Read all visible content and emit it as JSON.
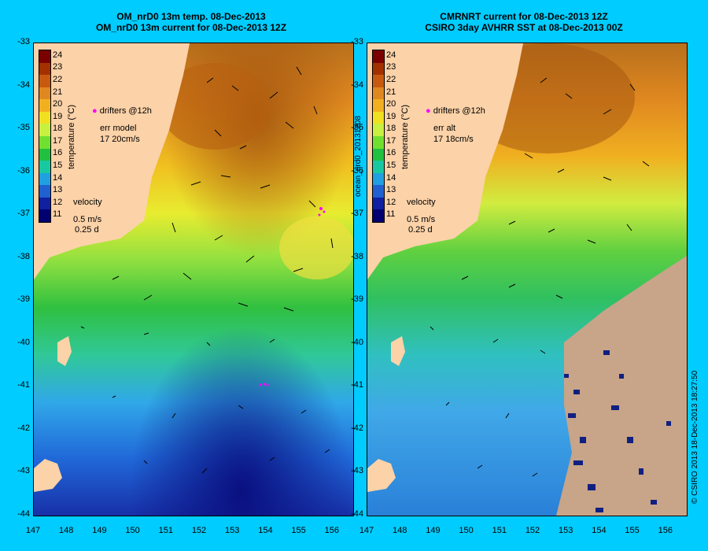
{
  "left_panel": {
    "title_line1": "OM_nrD0 13m temp. 08-Dec-2013",
    "title_line2": "OM_nrD0 13m current for 08-Dec-2013 12Z",
    "colorbar_label": "temperature (°C)",
    "drifters_label": "drifters @12h",
    "err_label": "err model",
    "err_value": "17 20cm/s",
    "velocity_label": "velocity",
    "velocity_scale": "0.5 m/s",
    "velocity_time": "0.25 d"
  },
  "right_panel": {
    "title_line1": "CMRNRT current for 08-Dec-2013 12Z",
    "title_line2": "CSIRO 3day AVHRR SST at 08-Dec-2013 00Z",
    "colorbar_label": "temperature (°C)",
    "drifters_label": "drifters @12h",
    "err_label": "err alt",
    "err_value": "17 18cm/s",
    "velocity_label": "velocity",
    "velocity_scale": "0.5 m/s",
    "velocity_time": "0.25 d",
    "side_id": "ocean_nrd0_20131208"
  },
  "footer_credit": "© CSIRO 2013   18-Dec-2013 18:27:50",
  "axes": {
    "lat_ticks": [
      "-33",
      "-34",
      "-35",
      "-36",
      "-37",
      "-38",
      "-39",
      "-40",
      "-41",
      "-42",
      "-43",
      "-44"
    ],
    "lon_ticks": [
      "147",
      "148",
      "149",
      "150",
      "151",
      "152",
      "153",
      "154",
      "155",
      "156"
    ]
  },
  "colorbar_ticks": [
    "24",
    "23",
    "22",
    "21",
    "20",
    "19",
    "18",
    "17",
    "16",
    "15",
    "14",
    "13",
    "12",
    "11"
  ],
  "colors": {
    "background": "#00ccff",
    "land": "#fcd2a8",
    "cloud": "#c8a488",
    "drifter": "#ff00ff"
  },
  "colorbar_colors": [
    "#7a0000",
    "#a33000",
    "#c85a10",
    "#e08820",
    "#f2b020",
    "#f0e020",
    "#c8f040",
    "#70e030",
    "#20c040",
    "#18c8a0",
    "#20a0e0",
    "#2060d0",
    "#1020a0",
    "#000070"
  ]
}
